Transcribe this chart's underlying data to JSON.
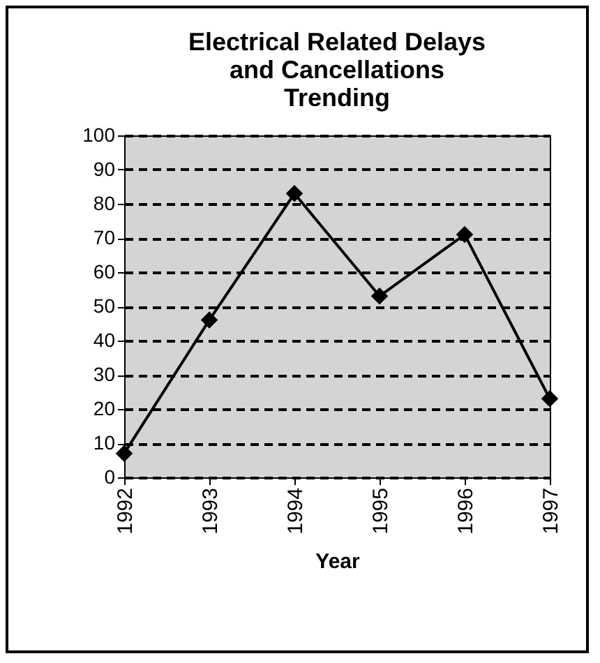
{
  "chart_data": {
    "type": "line",
    "title": "Electrical Related Delays\nand Cancellations\nTrending",
    "xlabel": "Year",
    "categories": [
      "1992",
      "1993",
      "1994",
      "1995",
      "1996",
      "1997"
    ],
    "values": [
      7,
      46,
      83,
      53,
      71,
      23
    ],
    "color": "#000000",
    "ylim": [
      0,
      100
    ],
    "yticks": [
      0,
      10,
      20,
      30,
      40,
      50,
      60,
      70,
      80,
      90,
      100
    ],
    "grid": "y",
    "marker": "diamond",
    "line_style": "solid"
  }
}
